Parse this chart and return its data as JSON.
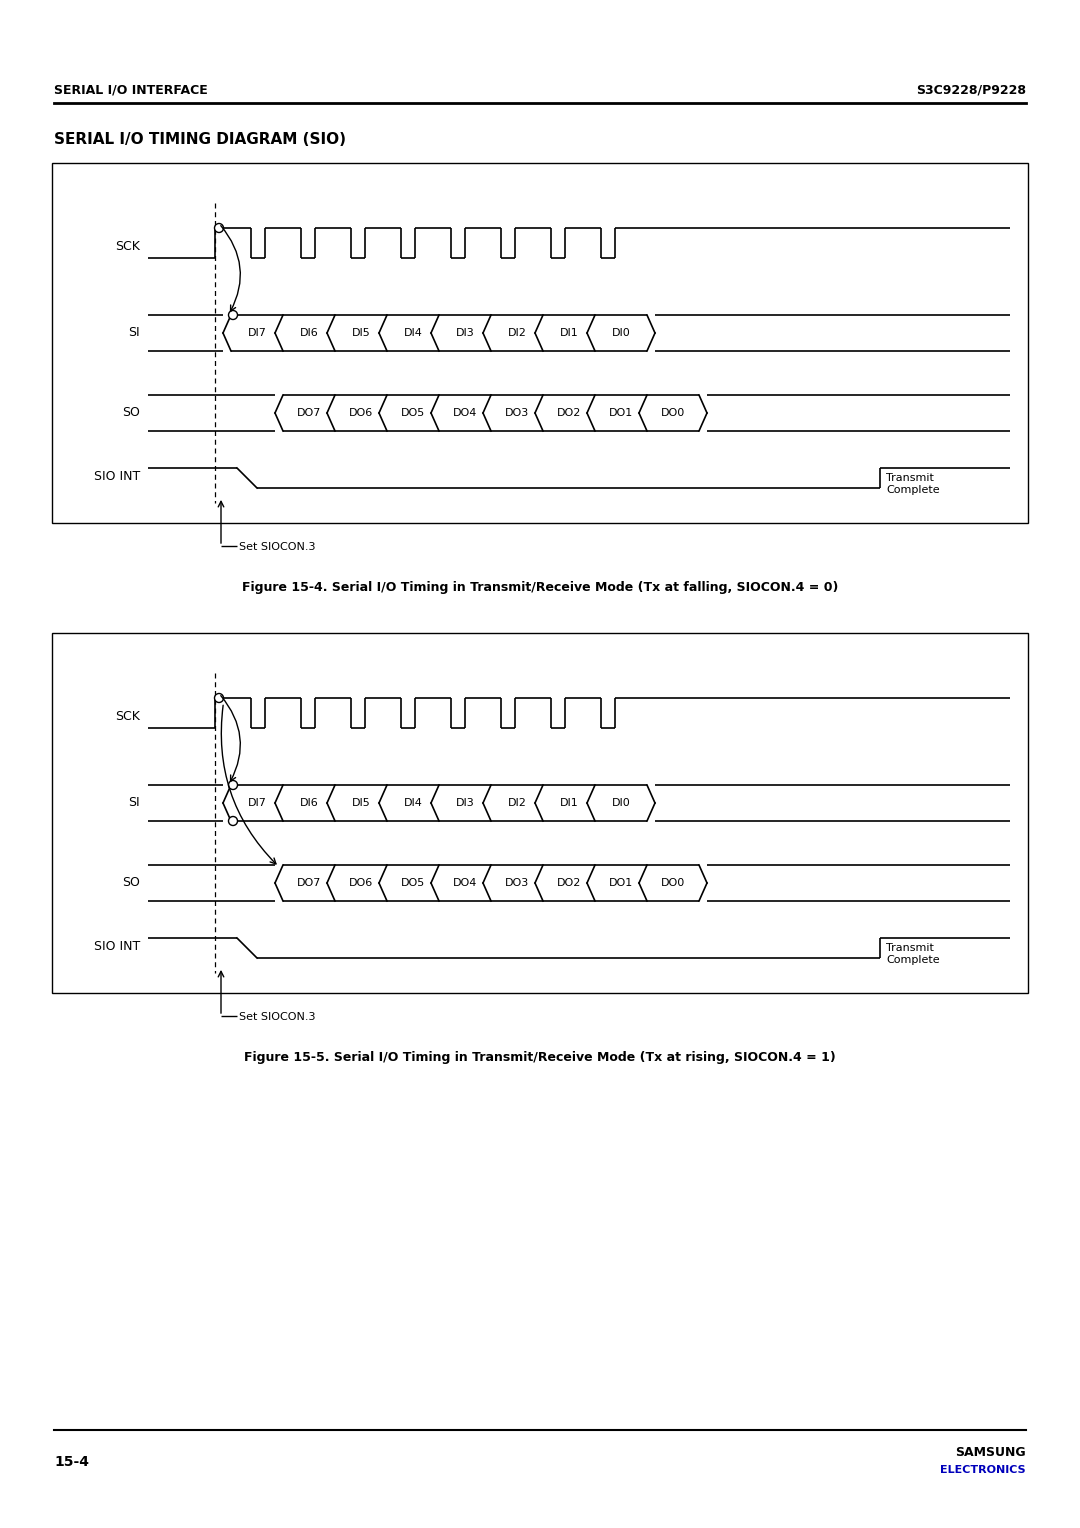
{
  "page_header_left": "SERIAL I/O INTERFACE",
  "page_header_right": "S3C9228/P9228",
  "section_title": "SERIAL I/O TIMING DIAGRAM (SIO)",
  "fig1_caption": "Figure 15-4. Serial I/O Timing in Transmit/Receive Mode (Tx at falling, SIOCON.4 = 0)",
  "fig2_caption": "Figure 15-5. Serial I/O Timing in Transmit/Receive Mode (Tx at rising, SIOCON.4 = 1)",
  "page_number": "15-4",
  "samsung_text": "SAMSUNG",
  "electronics_text": "ELECTRONICS",
  "si_labels": [
    "DI7",
    "DI6",
    "DI5",
    "DI4",
    "DI3",
    "DI2",
    "DI1",
    "DI0"
  ],
  "so_labels": [
    "DO7",
    "DO6",
    "DO5",
    "DO4",
    "DO3",
    "DO2",
    "DO1",
    "DO0"
  ],
  "transmit_complete": "Transmit\nComplete",
  "set_siocon": "Set SIOCON.3",
  "bg_color": "#ffffff",
  "line_color": "#000000",
  "samsung_color": "#0000bb"
}
